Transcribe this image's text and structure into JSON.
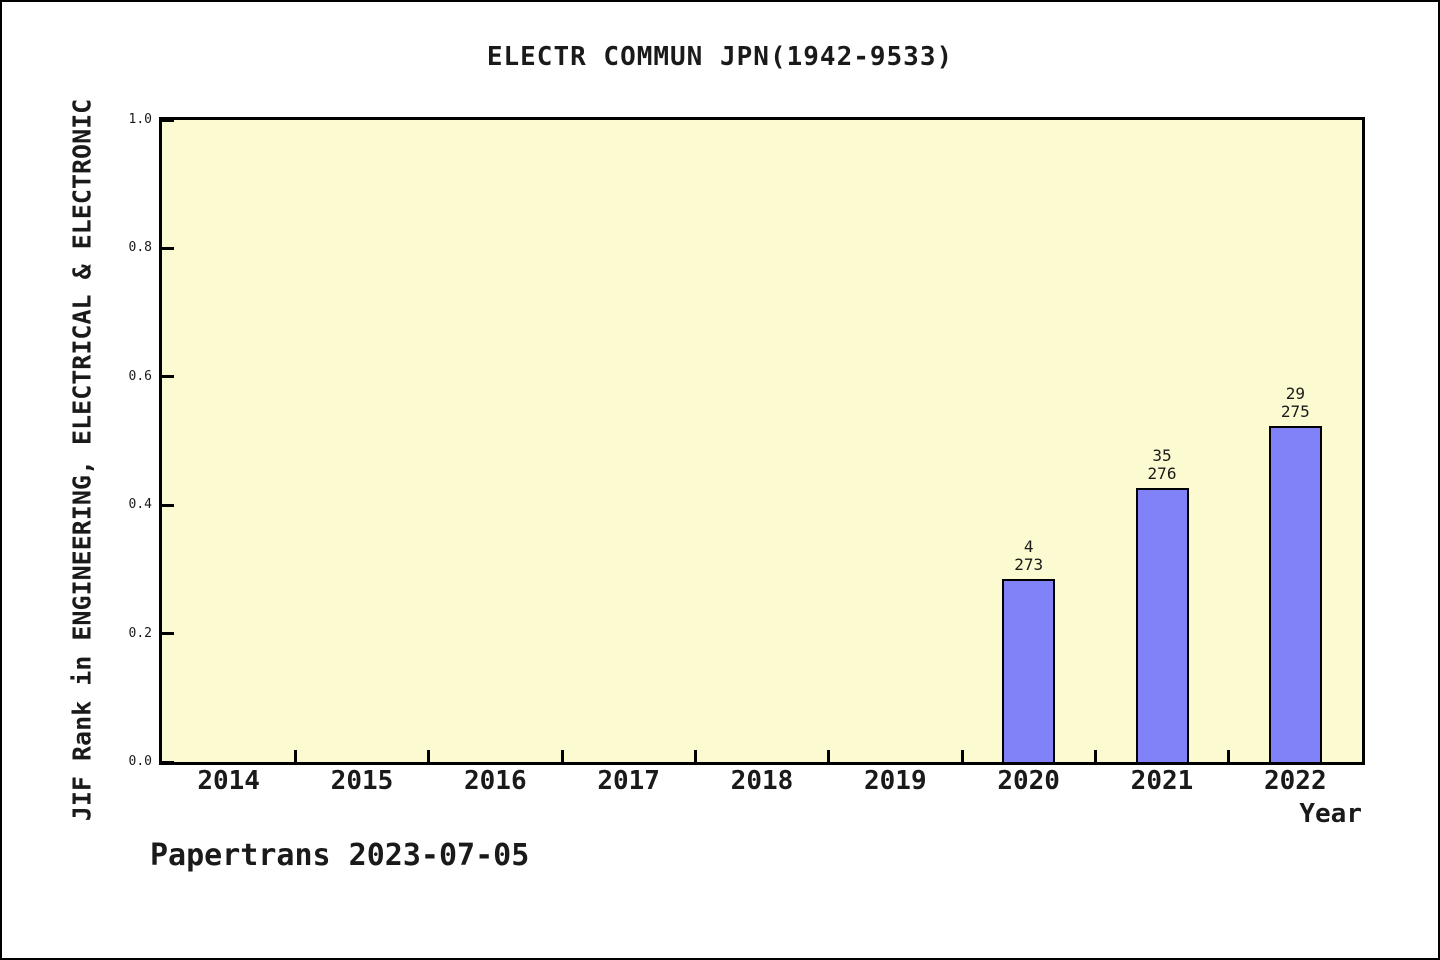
{
  "footer": "Papertrans 2023-07-05",
  "chart_data": {
    "type": "bar",
    "title": "ELECTR COMMUN JPN(1942-9533)",
    "xlabel": "Year",
    "ylabel": "JIF Rank in ENGINEERING, ELECTRICAL & ELECTRONIC",
    "categories": [
      "2014",
      "2015",
      "2016",
      "2017",
      "2018",
      "2019",
      "2020",
      "2021",
      "2022"
    ],
    "values": [
      null,
      null,
      null,
      null,
      null,
      null,
      0.285,
      0.427,
      0.523
    ],
    "annotations": [
      {
        "category": "2020",
        "rank": "4",
        "total": "273"
      },
      {
        "category": "2021",
        "rank": "35",
        "total": "276"
      },
      {
        "category": "2022",
        "rank": "29",
        "total": "275"
      }
    ],
    "ylim": [
      0,
      1
    ],
    "yticks": [
      "1.0",
      "0.8",
      "0.6",
      "0.4",
      "0.2",
      "0.0"
    ],
    "grid": false,
    "legend_position": "none",
    "bar_color": "#8282f8",
    "bar_border_color": "#000000",
    "plot_background": "#fbfad0",
    "axis_color": "#000000"
  }
}
